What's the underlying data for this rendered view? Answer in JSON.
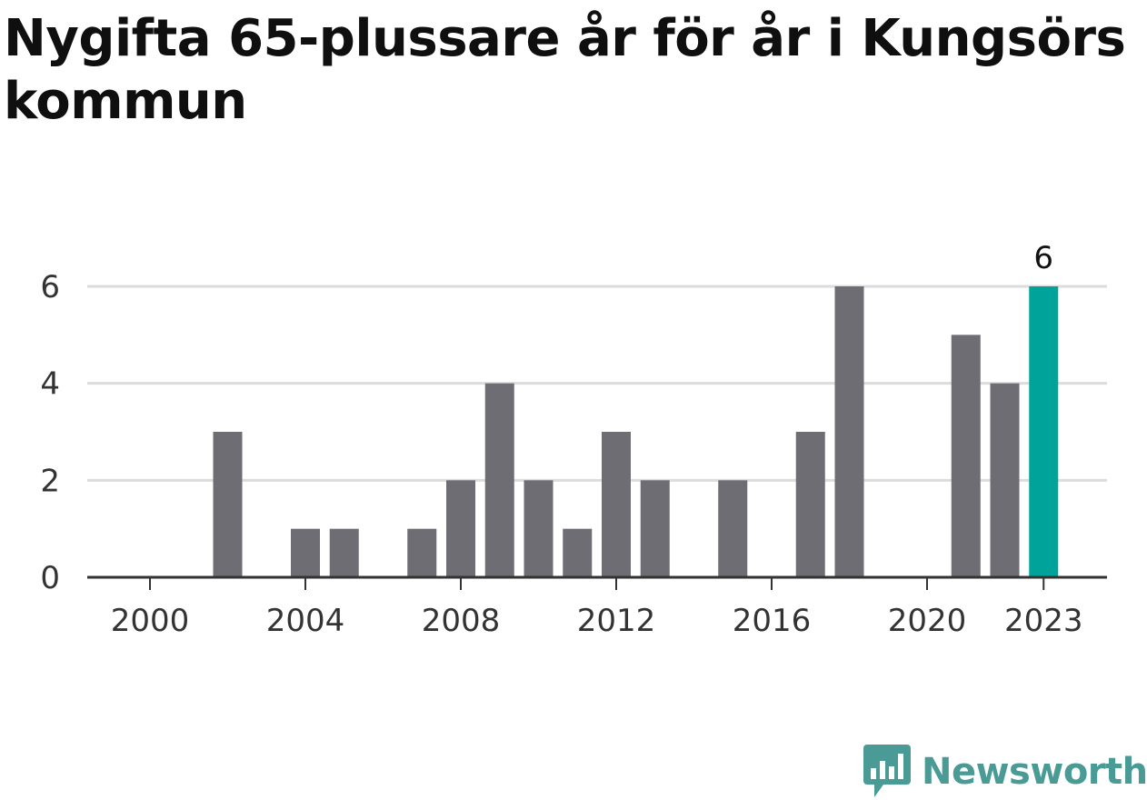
{
  "title": "Nygifta 65-plussare år för år i Kungsörs kommun",
  "brand": {
    "name": "Newsworthy",
    "icon": "newsworthy-logo-icon",
    "color": "#4a9b96"
  },
  "chart_data": {
    "type": "bar",
    "x": [
      2000,
      2001,
      2002,
      2003,
      2004,
      2005,
      2006,
      2007,
      2008,
      2009,
      2010,
      2011,
      2012,
      2013,
      2014,
      2015,
      2016,
      2017,
      2018,
      2019,
      2020,
      2021,
      2022,
      2023
    ],
    "values": [
      0,
      0,
      3,
      0,
      1,
      1,
      0,
      1,
      2,
      4,
      2,
      1,
      3,
      2,
      0,
      2,
      0,
      3,
      6,
      0,
      0,
      5,
      4,
      6
    ],
    "x_ticks": [
      "2000",
      "2004",
      "2008",
      "2012",
      "2016",
      "2020",
      "2023"
    ],
    "y_ticks": [
      0,
      2,
      4,
      6
    ],
    "ylim": [
      0,
      6
    ],
    "highlight": {
      "x": 2023,
      "label": "6"
    },
    "colors": {
      "bar": "#6d6d73",
      "highlight": "#00a39a",
      "grid": "#dcdcdc",
      "axis": "#333333"
    },
    "grid": true
  }
}
